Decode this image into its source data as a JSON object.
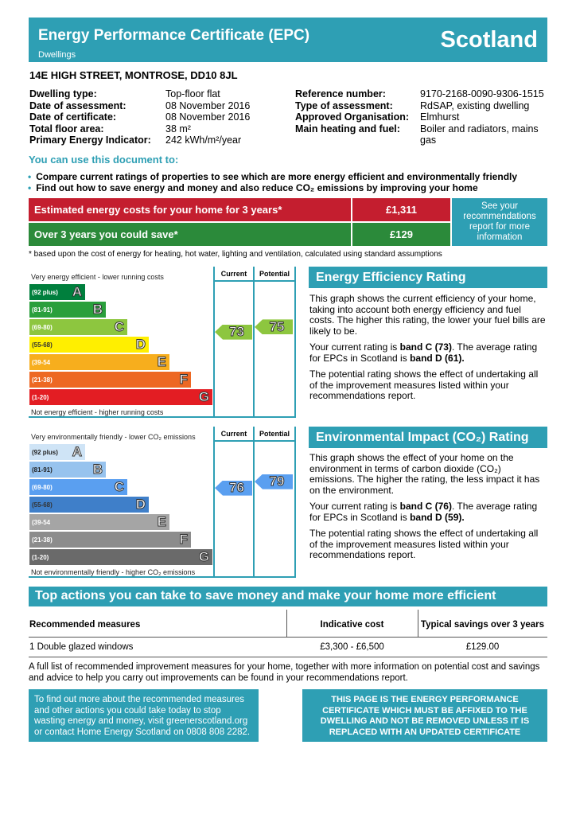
{
  "header": {
    "title": "Energy Performance Certificate (EPC)",
    "subtitle": "Dwellings",
    "region": "Scotland"
  },
  "address": "14E HIGH STREET, MONTROSE, DD10 8JL",
  "details_left": [
    {
      "label": "Dwelling type:",
      "value": "Top-floor flat"
    },
    {
      "label": "Date of assessment:",
      "value": "08 November 2016"
    },
    {
      "label": "Date of certificate:",
      "value": "08 November 2016"
    },
    {
      "label": "Total floor area:",
      "value": "38 m²"
    },
    {
      "label": "Primary Energy Indicator:",
      "value": "242 kWh/m²/year"
    }
  ],
  "details_right": [
    {
      "label": "Reference number:",
      "value": "9170-2168-0090-9306-1515"
    },
    {
      "label": "Type of assessment:",
      "value": "RdSAP, existing dwelling"
    },
    {
      "label": "Approved Organisation:",
      "value": "Elmhurst"
    },
    {
      "label": "Main heating and fuel:",
      "value": "Boiler and radiators, mains gas"
    }
  ],
  "use_heading": "You can use this document to:",
  "bullets": [
    "Compare current ratings of properties to see which are more energy efficient and environmentally friendly",
    "Find out how to save energy and money and also reduce CO₂ emissions by improving your home"
  ],
  "costs": {
    "row1_label": "Estimated energy costs for your home for 3 years*",
    "row1_value": "£1,311",
    "row2_label": "Over 3 years you could save*",
    "row2_value": "£129",
    "side": "See your recommendations report for more information",
    "footnote": "* based upon the cost of energy for heating, hot water, lighting and ventilation, calculated using standard assumptions",
    "colors": {
      "red": "#c41e2f",
      "green": "#2b8a3a",
      "teal": "#2e9fb4"
    }
  },
  "eer": {
    "top": "Very energy efficient - lower running costs",
    "bottom": "Not energy efficient - higher running costs",
    "current_label": "Current",
    "potential_label": "Potential",
    "current": 73,
    "potential": 75,
    "bands": [
      {
        "range": "(92 plus)",
        "letter": "A",
        "color": "#007f3d"
      },
      {
        "range": "(81-91)",
        "letter": "B",
        "color": "#2a9f3c"
      },
      {
        "range": "(69-80)",
        "letter": "C",
        "color": "#8dc63f"
      },
      {
        "range": "(55-68)",
        "letter": "D",
        "color": "#ffef00"
      },
      {
        "range": "(39-54",
        "letter": "E",
        "color": "#f7ae1d"
      },
      {
        "range": "(21-38)",
        "letter": "F",
        "color": "#ed6823"
      },
      {
        "range": "(1-20)",
        "letter": "G",
        "color": "#e31d23"
      }
    ],
    "arrow_color": "#8dc63f"
  },
  "eir": {
    "top": "Very environmentally friendly - lower CO₂ emissions",
    "bottom": "Not environmentally friendly - higher CO₂ emissions",
    "current_label": "Current",
    "potential_label": "Potential",
    "current": 76,
    "potential": 79,
    "bands": [
      {
        "range": "(92 plus)",
        "letter": "A",
        "color": "#cfe4f6"
      },
      {
        "range": "(81-91)",
        "letter": "B",
        "color": "#97c3ee"
      },
      {
        "range": "(69-80)",
        "letter": "C",
        "color": "#5a9ff0"
      },
      {
        "range": "(55-68)",
        "letter": "D",
        "color": "#3f7fc9"
      },
      {
        "range": "(39-54",
        "letter": "E",
        "color": "#a5a5a5"
      },
      {
        "range": "(21-38)",
        "letter": "F",
        "color": "#8c8c8c"
      },
      {
        "range": "(1-20)",
        "letter": "G",
        "color": "#6a6a6a"
      }
    ],
    "arrow_color": "#5a9ff0"
  },
  "eer_panel": {
    "title": "Energy Efficiency Rating",
    "p1": "This graph shows the current efficiency of your home, taking into account both energy efficiency and fuel costs. The higher this rating, the lower your fuel bills are likely to be.",
    "p2a": "Your current rating is ",
    "p2b": "band C (73)",
    "p2c": ". The average rating for EPCs in Scotland is ",
    "p2d": "band D (61).",
    "p3": "The potential rating shows the effect of undertaking all of the improvement measures listed within your recommendations report."
  },
  "eir_panel": {
    "title": "Environmental Impact (CO₂) Rating",
    "p1": "This graph shows the effect of your home on the environment in terms of carbon dioxide (CO₂) emissions. The higher the rating, the less impact it has on the environment.",
    "p2a": "Your current rating is ",
    "p2b": "band C (76)",
    "p2c": ". The average rating for EPCs in Scotland is ",
    "p2d": "band D (59).",
    "p3": "The potential rating shows the effect of undertaking all of the improvement measures listed within your recommendations report."
  },
  "actions": {
    "title": "Top actions you can take to save money and make your home more efficient",
    "headers": [
      "Recommended measures",
      "Indicative cost",
      "Typical savings over 3 years"
    ],
    "rows": [
      [
        "1 Double glazed windows",
        "£3,300 - £6,500",
        "£129.00"
      ]
    ],
    "note": "A full list of recommended improvement measures for your home, together with more information on potential cost and savings and advice to help you carry out improvements can be found in your recommendations report."
  },
  "footer": {
    "left": "To find out more about the recommended measures and other actions you could take today to stop wasting energy and money, visit greenerscotland.org or contact Home Energy Scotland on 0808 808 2282.",
    "right": "THIS PAGE IS THE ENERGY PERFORMANCE CERTIFICATE WHICH MUST BE AFFIXED TO THE DWELLING AND NOT BE REMOVED UNLESS IT IS REPLACED WITH AN UPDATED CERTIFICATE"
  }
}
